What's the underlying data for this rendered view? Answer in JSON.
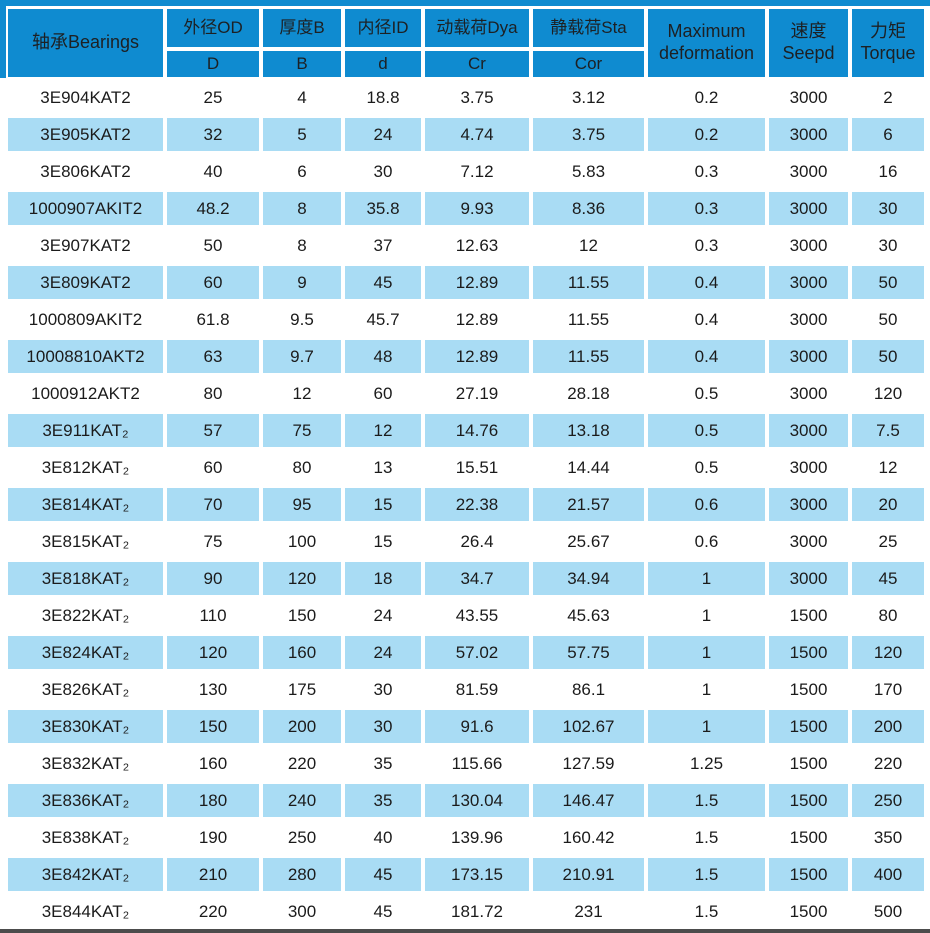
{
  "colors": {
    "header_blue": "#0f8bd0",
    "row_blue": "#a9dcf4",
    "header_text": "#1d2023",
    "body_text": "#1b1b1b",
    "bottom_line": "#4c4c4c"
  },
  "table": {
    "bearings_header": "轴承Bearings",
    "split_columns": [
      {
        "top": "外径OD",
        "bottom": "D"
      },
      {
        "top": "厚度B",
        "bottom": "B"
      },
      {
        "top": "内径ID",
        "bottom": "d"
      },
      {
        "top": "动载荷Dya",
        "bottom": "Cr"
      },
      {
        "top": "静载荷Sta",
        "bottom": "Cor"
      }
    ],
    "max_deformation": {
      "line1": "Maximum",
      "line2": "deformation"
    },
    "speed": {
      "line1": "速度",
      "line2": "Seepd"
    },
    "torque": {
      "line1": "力矩",
      "line2": "Torque"
    },
    "rows": [
      [
        "3E904KAT2",
        "25",
        "4",
        "18.8",
        "3.75",
        "3.12",
        "0.2",
        "3000",
        "2"
      ],
      [
        "3E905KAT2",
        "32",
        "5",
        "24",
        "4.74",
        "3.75",
        "0.2",
        "3000",
        "6"
      ],
      [
        "3E806KAT2",
        "40",
        "6",
        "30",
        "7.12",
        "5.83",
        "0.3",
        "3000",
        "16"
      ],
      [
        "1000907AKIT2",
        "48.2",
        "8",
        "35.8",
        "9.93",
        "8.36",
        "0.3",
        "3000",
        "30"
      ],
      [
        "3E907KAT2",
        "50",
        "8",
        "37",
        "12.63",
        "12",
        "0.3",
        "3000",
        "30"
      ],
      [
        "3E809KAT2",
        "60",
        "9",
        "45",
        "12.89",
        "11.55",
        "0.4",
        "3000",
        "50"
      ],
      [
        "1000809AKIT2",
        "61.8",
        "9.5",
        "45.7",
        "12.89",
        "11.55",
        "0.4",
        "3000",
        "50"
      ],
      [
        "10008810AKT2",
        "63",
        "9.7",
        "48",
        "12.89",
        "11.55",
        "0.4",
        "3000",
        "50"
      ],
      [
        "1000912AKT2",
        "80",
        "12",
        "60",
        "27.19",
        "28.18",
        "0.5",
        "3000",
        "120"
      ],
      [
        "3E911KAT₂",
        "57",
        "75",
        "12",
        "14.76",
        "13.18",
        "0.5",
        "3000",
        "7.5"
      ],
      [
        "3E812KAT₂",
        "60",
        "80",
        "13",
        "15.51",
        "14.44",
        "0.5",
        "3000",
        "12"
      ],
      [
        "3E814KAT₂",
        "70",
        "95",
        "15",
        "22.38",
        "21.57",
        "0.6",
        "3000",
        "20"
      ],
      [
        "3E815KAT₂",
        "75",
        "100",
        "15",
        "26.4",
        "25.67",
        "0.6",
        "3000",
        "25"
      ],
      [
        "3E818KAT₂",
        "90",
        "120",
        "18",
        "34.7",
        "34.94",
        "1",
        "3000",
        "45"
      ],
      [
        "3E822KAT₂",
        "110",
        "150",
        "24",
        "43.55",
        "45.63",
        "1",
        "1500",
        "80"
      ],
      [
        "3E824KAT₂",
        "120",
        "160",
        "24",
        "57.02",
        "57.75",
        "1",
        "1500",
        "120"
      ],
      [
        "3E826KAT₂",
        "130",
        "175",
        "30",
        "81.59",
        "86.1",
        "1",
        "1500",
        "170"
      ],
      [
        "3E830KAT₂",
        "150",
        "200",
        "30",
        "91.6",
        "102.67",
        "1",
        "1500",
        "200"
      ],
      [
        "3E832KAT₂",
        "160",
        "220",
        "35",
        "115.66",
        "127.59",
        "1.25",
        "1500",
        "220"
      ],
      [
        "3E836KAT₂",
        "180",
        "240",
        "35",
        "130.04",
        "146.47",
        "1.5",
        "1500",
        "250"
      ],
      [
        "3E838KAT₂",
        "190",
        "250",
        "40",
        "139.96",
        "160.42",
        "1.5",
        "1500",
        "350"
      ],
      [
        "3E842KAT₂",
        "210",
        "280",
        "45",
        "173.15",
        "210.91",
        "1.5",
        "1500",
        "400"
      ],
      [
        "3E844KAT₂",
        "220",
        "300",
        "45",
        "181.72",
        "231",
        "1.5",
        "1500",
        "500"
      ]
    ]
  }
}
